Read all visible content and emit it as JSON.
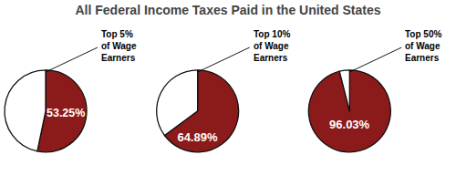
{
  "chart_data": {
    "type": "pie",
    "title": "All Federal Income Taxes Paid in the United States",
    "colors": [
      "#8B1A1A",
      "#FFFFFF"
    ],
    "data_labels": true,
    "series": [
      {
        "name": "Top 5%\nof Wage\nEarners",
        "values": [
          53.25,
          46.75
        ],
        "value_labels": [
          "53.25%",
          null
        ]
      },
      {
        "name": "Top 10%\nof Wage\nEarners",
        "values": [
          64.89,
          35.11
        ],
        "value_labels": [
          "64.89%",
          null
        ]
      },
      {
        "name": "Top 50%\nof Wage\nEarners",
        "values": [
          96.03,
          3.97
        ],
        "value_labels": [
          "96.03%",
          null
        ]
      }
    ]
  }
}
